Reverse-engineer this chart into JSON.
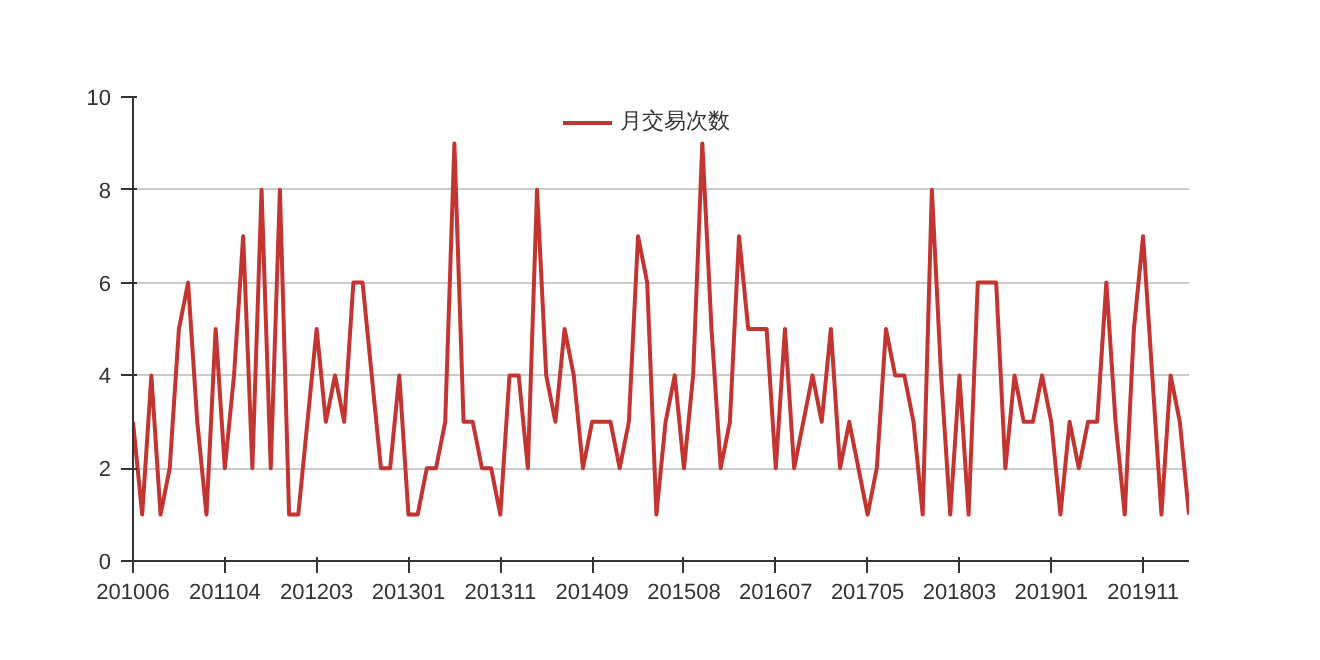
{
  "chart_data": {
    "type": "line",
    "categories": [
      "201006",
      null,
      null,
      null,
      null,
      null,
      null,
      null,
      null,
      null,
      "201104",
      null,
      null,
      null,
      null,
      null,
      null,
      null,
      null,
      null,
      "201203",
      null,
      null,
      null,
      null,
      null,
      null,
      null,
      null,
      null,
      "201301",
      null,
      null,
      null,
      null,
      null,
      null,
      null,
      null,
      null,
      "201311",
      null,
      null,
      null,
      null,
      null,
      null,
      null,
      null,
      null,
      "201409",
      null,
      null,
      null,
      null,
      null,
      null,
      null,
      null,
      null,
      "201508",
      null,
      null,
      null,
      null,
      null,
      null,
      null,
      null,
      null,
      "201607",
      null,
      null,
      null,
      null,
      null,
      null,
      null,
      null,
      null,
      "201705",
      null,
      null,
      null,
      null,
      null,
      null,
      null,
      null,
      null,
      "201803",
      null,
      null,
      null,
      null,
      null,
      null,
      null,
      null,
      null,
      "201901",
      null,
      null,
      null,
      null,
      null,
      null,
      null,
      null,
      null,
      "201911",
      null,
      null,
      null,
      null,
      null
    ],
    "series": [
      {
        "name": "月交易次数",
        "color": "#c23531",
        "values": [
          3,
          1,
          4,
          1,
          2,
          5,
          6,
          3,
          1,
          5,
          2,
          4,
          7,
          2,
          8,
          2,
          8,
          1,
          1,
          3,
          5,
          3,
          4,
          3,
          6,
          6,
          4,
          2,
          2,
          4,
          1,
          1,
          2,
          2,
          3,
          9,
          3,
          3,
          2,
          2,
          1,
          4,
          4,
          2,
          8,
          4,
          3,
          5,
          4,
          2,
          3,
          3,
          3,
          2,
          3,
          7,
          6,
          1,
          3,
          4,
          2,
          4,
          9,
          5,
          2,
          3,
          7,
          5,
          5,
          5,
          2,
          5,
          2,
          3,
          4,
          3,
          5,
          2,
          3,
          2,
          1,
          2,
          5,
          4,
          4,
          3,
          1,
          8,
          4,
          1,
          4,
          1,
          6,
          6,
          6,
          2,
          4,
          3,
          3,
          4,
          3,
          1,
          3,
          2,
          3,
          3,
          6,
          3,
          1,
          5,
          7,
          4,
          1,
          4,
          3,
          1
        ]
      }
    ],
    "ylim": [
      0,
      10
    ],
    "yticks": [
      0,
      2,
      4,
      6,
      8,
      10
    ],
    "grid": "y",
    "legend": "top",
    "line_style": "solid"
  }
}
